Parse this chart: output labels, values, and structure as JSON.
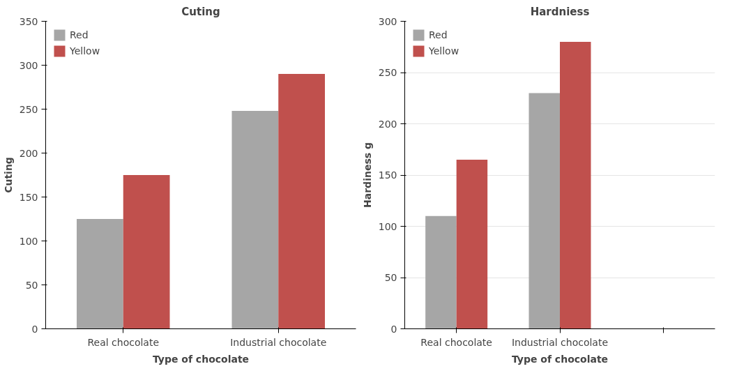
{
  "chart_data": [
    {
      "type": "bar",
      "title": "Cuting",
      "xlabel": "Type of chocolate",
      "ylabel": "Cuting",
      "categories": [
        "Real chocolate",
        "Industrial chocolate"
      ],
      "series": [
        {
          "name": "Red",
          "color": "#a6a6a6",
          "values": [
            125,
            248
          ]
        },
        {
          "name": "Yellow",
          "color": "#c0504d",
          "values": [
            175,
            290
          ]
        }
      ],
      "ylim": [
        0,
        350
      ],
      "yticks": [
        0,
        50,
        100,
        150,
        200,
        250,
        300,
        350
      ],
      "grid": false,
      "legend": "top left"
    },
    {
      "type": "bar",
      "title": "Hardniess",
      "xlabel": "Type of chocolate",
      "ylabel": "Hardiness g",
      "categories": [
        "Real chocolate",
        "Industrial chocolate",
        null
      ],
      "series": [
        {
          "name": "Red",
          "color": "#a6a6a6",
          "values": [
            110,
            230,
            null
          ]
        },
        {
          "name": "Yellow",
          "color": "#c0504d",
          "values": [
            165,
            280,
            null
          ]
        }
      ],
      "ylim": [
        0,
        300
      ],
      "yticks": [
        0,
        50,
        100,
        150,
        200,
        250,
        300
      ],
      "grid": "y",
      "legend": "top left"
    }
  ]
}
